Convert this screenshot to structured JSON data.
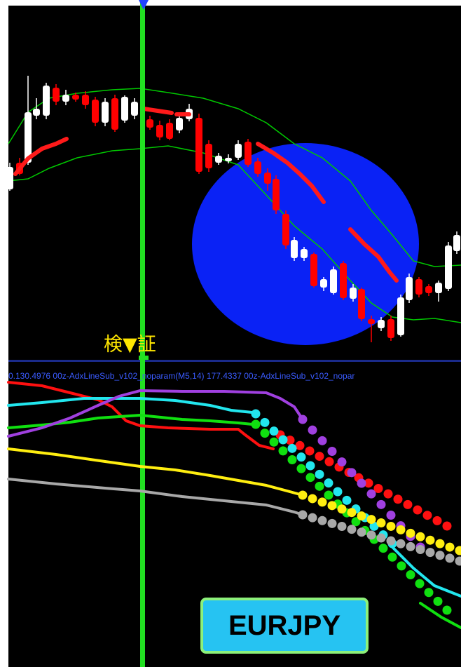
{
  "indicator_header": "0.130.4976  00z-AdxLineSub_v102_noparam(M5,14) 177.4337  00z-AdxLineSub_v102_nopar",
  "verify_label": "検▼証",
  "symbol_badge": "EURJPY",
  "colors": {
    "background": "#000000",
    "up_candle": "#ffffff",
    "down_candle": "#ff0000",
    "ma_line": "#ff1a1a",
    "band": "#00c800",
    "highlight_circle": "#0a22f5",
    "vertical_marker": "#22e022",
    "header_text": "#3a5bff",
    "verify_text": "#ffe600",
    "line_red": "#ff1010",
    "line_cyan": "#22e6ee",
    "line_green": "#10e010",
    "line_purple": "#a040e0",
    "line_yellow": "#ffee10",
    "line_gray": "#a8a8a8",
    "badge_bg": "#26c3f2",
    "badge_border": "#8cf07a"
  }
}
